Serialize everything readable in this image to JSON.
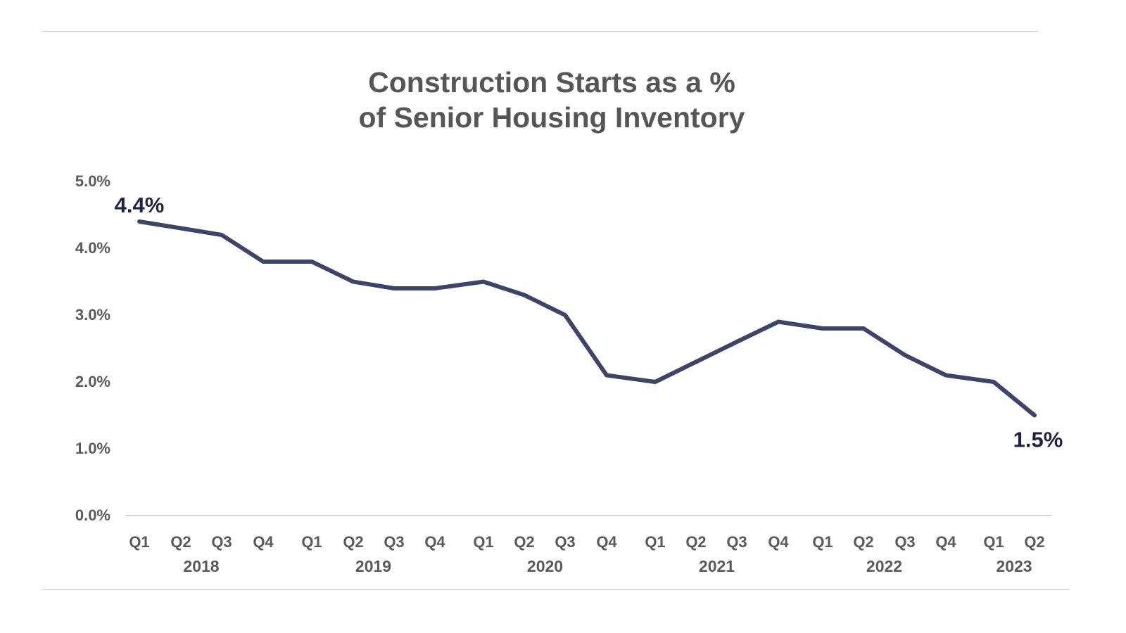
{
  "chart_data": {
    "type": "line",
    "title_lines": [
      "Construction Starts as a %",
      "of Senior Housing Inventory"
    ],
    "xlabel": "",
    "ylabel": "",
    "ylim": [
      0,
      5
    ],
    "yticks": [
      "0.0%",
      "1.0%",
      "2.0%",
      "3.0%",
      "4.0%",
      "5.0%"
    ],
    "grid": false,
    "years": [
      "2018",
      "2019",
      "2020",
      "2021",
      "2022",
      "2023"
    ],
    "categories": [
      {
        "quarter": "Q1",
        "year": "2018"
      },
      {
        "quarter": "Q2",
        "year": "2018"
      },
      {
        "quarter": "Q3",
        "year": "2018"
      },
      {
        "quarter": "Q4",
        "year": "2018"
      },
      {
        "quarter": "Q1",
        "year": "2019"
      },
      {
        "quarter": "Q2",
        "year": "2019"
      },
      {
        "quarter": "Q3",
        "year": "2019"
      },
      {
        "quarter": "Q4",
        "year": "2019"
      },
      {
        "quarter": "Q1",
        "year": "2020"
      },
      {
        "quarter": "Q2",
        "year": "2020"
      },
      {
        "quarter": "Q3",
        "year": "2020"
      },
      {
        "quarter": "Q4",
        "year": "2020"
      },
      {
        "quarter": "Q1",
        "year": "2021"
      },
      {
        "quarter": "Q2",
        "year": "2021"
      },
      {
        "quarter": "Q3",
        "year": "2021"
      },
      {
        "quarter": "Q4",
        "year": "2021"
      },
      {
        "quarter": "Q1",
        "year": "2022"
      },
      {
        "quarter": "Q2",
        "year": "2022"
      },
      {
        "quarter": "Q3",
        "year": "2022"
      },
      {
        "quarter": "Q4",
        "year": "2022"
      },
      {
        "quarter": "Q1",
        "year": "2023"
      },
      {
        "quarter": "Q2",
        "year": "2023"
      }
    ],
    "series": [
      {
        "values": [
          4.4,
          4.3,
          4.2,
          3.8,
          3.8,
          3.5,
          3.4,
          3.4,
          3.5,
          3.3,
          3.0,
          2.1,
          2.0,
          2.3,
          2.6,
          2.9,
          2.8,
          2.8,
          2.4,
          2.1,
          2.0,
          1.5
        ],
        "color": "#3d4466"
      }
    ],
    "annotations": [
      {
        "text": "4.4%",
        "point_index": 0
      },
      {
        "text": "1.5%",
        "point_index": 21
      }
    ]
  }
}
